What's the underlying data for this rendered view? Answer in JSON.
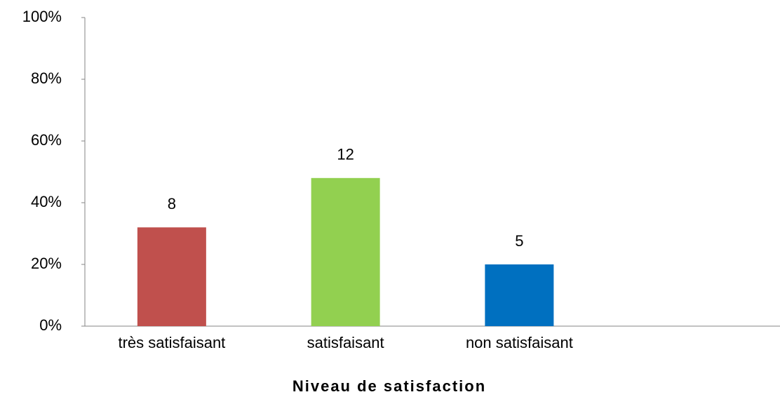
{
  "chart_data": {
    "type": "bar",
    "x_axis_label": "Niveau de satisfaction",
    "categories": [
      "très  satisfaisant",
      "satisfaisant",
      "non satisfaisant"
    ],
    "values": [
      32,
      48,
      20
    ],
    "counts": [
      8,
      12,
      5
    ],
    "colors": [
      "#c0504d",
      "#92d050",
      "#0070c0"
    ],
    "ylim": [
      0,
      100
    ],
    "yticks": [
      {
        "value": 0,
        "label": "0%"
      },
      {
        "value": 20,
        "label": "20%"
      },
      {
        "value": 40,
        "label": "40%"
      },
      {
        "value": 60,
        "label": "60%"
      },
      {
        "value": 80,
        "label": "80%"
      },
      {
        "value": 100,
        "label": "100%"
      }
    ],
    "grid": false
  }
}
